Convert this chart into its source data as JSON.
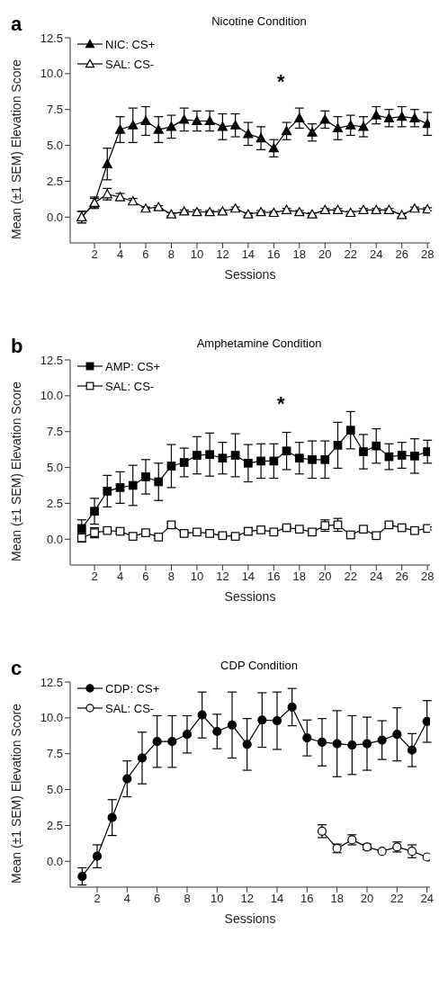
{
  "chart_data": [
    {
      "type": "line",
      "title": "Nicotine Condition",
      "xlabel": "Sessions",
      "ylabel": "Mean (±1 SEM) Elevation Score",
      "marker": "triangle",
      "legend": "top left",
      "annotations": [
        "a",
        "*"
      ],
      "x": [
        1,
        2,
        3,
        4,
        5,
        6,
        7,
        8,
        9,
        10,
        11,
        12,
        13,
        14,
        15,
        16,
        17,
        18,
        19,
        20,
        21,
        22,
        23,
        24,
        25,
        26,
        27,
        28
      ],
      "xlim": [
        0.1,
        28.2
      ],
      "xticks": [
        2,
        4,
        6,
        8,
        10,
        12,
        14,
        16,
        18,
        20,
        22,
        24,
        26,
        28
      ],
      "ylim": [
        -1.8,
        12.5
      ],
      "yticks": [
        {
          "value": 0,
          "label": "0.0"
        },
        {
          "value": 2.5,
          "label": "2.5"
        },
        {
          "value": 5,
          "label": "5.0"
        },
        {
          "value": 7.5,
          "label": "7.5"
        },
        {
          "value": 10,
          "label": "10.0"
        },
        {
          "value": 12.5,
          "label": "12.5"
        }
      ],
      "series": [
        {
          "name": "NIC: CS+",
          "color": "#000000",
          "values": [
            0,
            1.0,
            3.7,
            6.1,
            6.4,
            6.7,
            6.1,
            6.3,
            6.8,
            6.7,
            6.7,
            6.3,
            6.4,
            5.8,
            5.5,
            4.8,
            6.0,
            6.9,
            5.9,
            6.8,
            6.2,
            6.4,
            6.3,
            7.1,
            6.9,
            7.0,
            6.9,
            6.5
          ],
          "errors": [
            0.4,
            0.4,
            1.1,
            0.9,
            1.2,
            1.0,
            0.9,
            0.8,
            0.8,
            0.7,
            0.7,
            0.9,
            0.8,
            0.8,
            0.8,
            0.6,
            0.6,
            0.7,
            0.6,
            0.6,
            0.8,
            0.7,
            0.7,
            0.6,
            0.6,
            0.7,
            0.6,
            0.8
          ]
        },
        {
          "name": "SAL: CS-",
          "color": "#000000",
          "values": [
            0.0,
            1.0,
            1.6,
            1.4,
            1.1,
            0.6,
            0.7,
            0.2,
            0.4,
            0.35,
            0.35,
            0.4,
            0.6,
            0.2,
            0.35,
            0.3,
            0.5,
            0.35,
            0.2,
            0.5,
            0.5,
            0.3,
            0.5,
            0.5,
            0.5,
            0.15,
            0.6,
            0.55
          ],
          "errors": [
            0.4,
            0.3,
            0.4,
            0.25,
            0.2,
            0.1,
            0.1,
            0.1,
            0.1,
            0.15,
            0.1,
            0.1,
            0.1,
            0.1,
            0.1,
            0.1,
            0.1,
            0.1,
            0.1,
            0.1,
            0.1,
            0.1,
            0.1,
            0.1,
            0.1,
            0.1,
            0.1,
            0.1
          ]
        }
      ]
    },
    {
      "type": "line",
      "title": "Amphetamine Condition",
      "xlabel": "Sessions",
      "ylabel": "Mean (±1 SEM) Elevation Score",
      "marker": "square",
      "legend": "top left",
      "annotations": [
        "b",
        "*"
      ],
      "x": [
        1,
        2,
        3,
        4,
        5,
        6,
        7,
        8,
        9,
        10,
        11,
        12,
        13,
        14,
        15,
        16,
        17,
        18,
        19,
        20,
        21,
        22,
        23,
        24,
        25,
        26,
        27,
        28
      ],
      "xlim": [
        0.1,
        28.2
      ],
      "xticks": [
        2,
        4,
        6,
        8,
        10,
        12,
        14,
        16,
        18,
        20,
        22,
        24,
        26,
        28
      ],
      "ylim": [
        -1.8,
        12.5
      ],
      "yticks": [
        {
          "value": 0,
          "label": "0.0"
        },
        {
          "value": 2.5,
          "label": "2.5"
        },
        {
          "value": 5,
          "label": "5.0"
        },
        {
          "value": 7.5,
          "label": "7.5"
        },
        {
          "value": 10,
          "label": "10.0"
        },
        {
          "value": 12.5,
          "label": "12.5"
        }
      ],
      "series": [
        {
          "name": "AMP: CS+",
          "color": "#000000",
          "values": [
            0.75,
            1.95,
            3.35,
            3.6,
            3.75,
            4.35,
            4.0,
            5.1,
            5.35,
            5.85,
            5.9,
            5.65,
            5.85,
            5.3,
            5.45,
            5.45,
            6.15,
            5.65,
            5.55,
            5.55,
            6.55,
            7.6,
            6.1,
            6.5,
            5.75,
            5.85,
            5.8,
            6.1
          ],
          "errors": [
            0.6,
            0.9,
            1.1,
            1.1,
            1.4,
            1.2,
            1.3,
            1.5,
            1.0,
            1.3,
            1.5,
            1.1,
            1.5,
            1.3,
            1.2,
            1.2,
            1.3,
            1.1,
            1.3,
            1.3,
            1.6,
            1.3,
            1.2,
            1.2,
            0.9,
            0.9,
            1.2,
            0.8
          ]
        },
        {
          "name": "SAL: CS-",
          "color": "#000000",
          "values": [
            0.1,
            0.45,
            0.6,
            0.55,
            0.2,
            0.45,
            0.15,
            1.0,
            0.4,
            0.5,
            0.4,
            0.25,
            0.2,
            0.55,
            0.65,
            0.5,
            0.8,
            0.7,
            0.5,
            0.95,
            1.0,
            0.3,
            0.7,
            0.25,
            1.0,
            0.8,
            0.6,
            0.75
          ],
          "errors": [
            0.3,
            0.35,
            0.1,
            0.15,
            0.1,
            0.1,
            0.1,
            0.15,
            0.1,
            0.1,
            0.1,
            0.1,
            0.1,
            0.25,
            0.1,
            0.1,
            0.1,
            0.1,
            0.1,
            0.4,
            0.45,
            0.1,
            0.1,
            0.1,
            0.1,
            0.1,
            0.1,
            0.1
          ]
        }
      ]
    },
    {
      "type": "line",
      "title": "CDP Condition",
      "xlabel": "Sessions",
      "ylabel": "Mean (±1 SEM) Elevation Score",
      "marker": "circle",
      "legend": "top left",
      "annotations": [
        "c"
      ],
      "x": [
        1,
        2,
        3,
        4,
        5,
        6,
        7,
        8,
        9,
        10,
        11,
        12,
        13,
        14,
        15,
        16,
        17,
        18,
        19,
        20,
        21,
        22,
        23,
        24
      ],
      "xlim": [
        0.2,
        24.2
      ],
      "xticks": [
        2,
        4,
        6,
        8,
        10,
        12,
        14,
        16,
        18,
        20,
        22,
        24
      ],
      "ylim": [
        -1.8,
        12.5
      ],
      "yticks": [
        {
          "value": 0,
          "label": "0.0"
        },
        {
          "value": 2.5,
          "label": "2.5"
        },
        {
          "value": 5,
          "label": "5.0"
        },
        {
          "value": 7.5,
          "label": "7.5"
        },
        {
          "value": 10,
          "label": "10.0"
        },
        {
          "value": 12.5,
          "label": "12.5"
        }
      ],
      "series": [
        {
          "name": "CDP: CS+",
          "color": "#000000",
          "values": [
            -1.05,
            0.35,
            3.05,
            5.75,
            7.2,
            8.35,
            8.35,
            8.85,
            10.2,
            9.05,
            9.5,
            8.15,
            9.85,
            9.8,
            10.75,
            8.6,
            8.3,
            8.2,
            8.1,
            8.2,
            8.45,
            8.85,
            7.75,
            9.75
          ],
          "errors": [
            0.6,
            0.8,
            1.25,
            1.25,
            1.8,
            1.8,
            1.8,
            1.3,
            1.6,
            1.2,
            2.3,
            1.8,
            1.9,
            2.0,
            1.3,
            1.25,
            1.65,
            2.3,
            2.05,
            1.85,
            1.35,
            1.85,
            1.15,
            1.45
          ]
        },
        {
          "name": "SAL: CS-",
          "color": "#000000",
          "values": [
            null,
            null,
            null,
            null,
            null,
            null,
            null,
            null,
            null,
            null,
            null,
            null,
            null,
            null,
            null,
            null,
            2.1,
            0.9,
            1.5,
            1.0,
            0.7,
            1.0,
            0.7,
            0.3
          ],
          "errors": [
            null,
            null,
            null,
            null,
            null,
            null,
            null,
            null,
            null,
            null,
            null,
            null,
            null,
            null,
            null,
            null,
            0.45,
            0.3,
            0.35,
            0.2,
            null,
            0.35,
            0.45,
            null
          ]
        }
      ]
    }
  ]
}
